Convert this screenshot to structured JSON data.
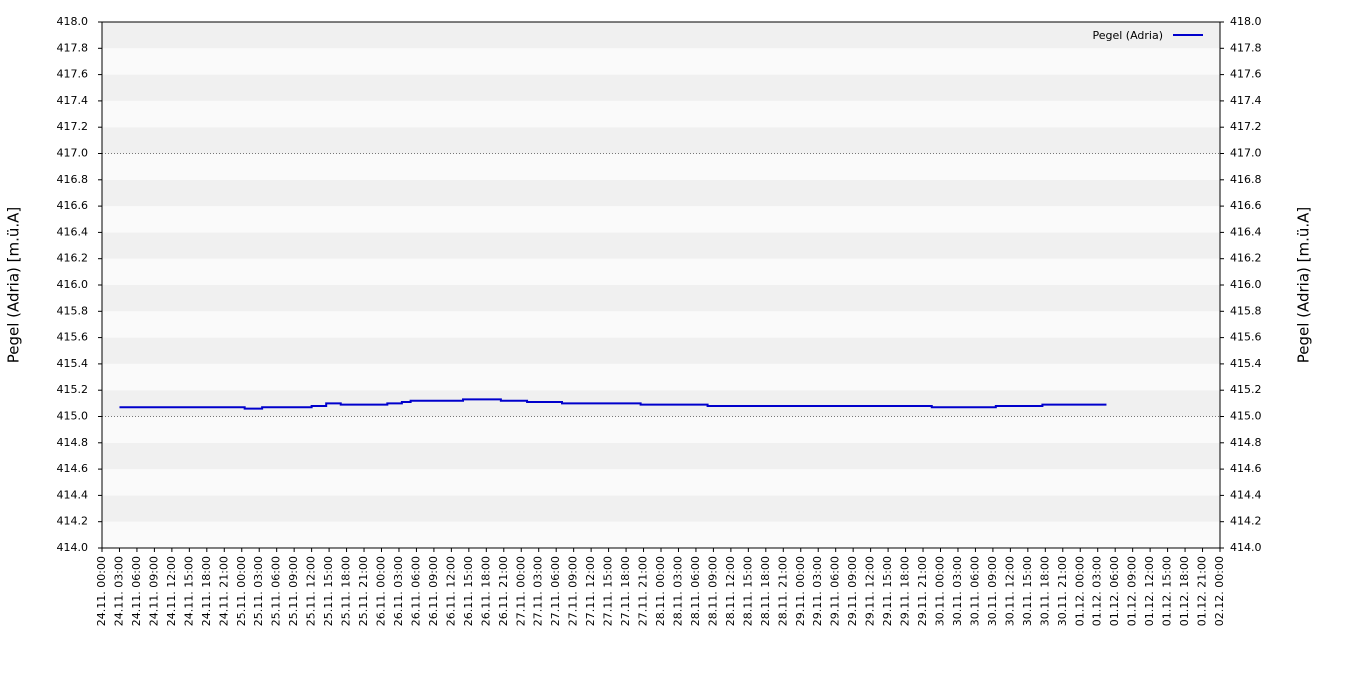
{
  "chart_data": {
    "type": "line",
    "ylabel": "Pegel (Adria) [m.ü.A]",
    "y2label": "Pegel (Adria) [m.ü.A]",
    "legend": "upper right",
    "series": [
      {
        "name": "Pegel (Adria)",
        "color": "#0000cc",
        "x": [
          3,
          24.5,
          24.5,
          27.5,
          27.5,
          36,
          36,
          38.5,
          38.5,
          41,
          41,
          49,
          49,
          51.5,
          51.5,
          53,
          53,
          62,
          62,
          68.5,
          68.5,
          73,
          73,
          79,
          79,
          92.5,
          92.5,
          104,
          104,
          142.5,
          142.5,
          153.5,
          153.5,
          161.5,
          161.5,
          172.5
        ],
        "values": [
          415.07,
          415.07,
          415.06,
          415.06,
          415.07,
          415.07,
          415.08,
          415.08,
          415.1,
          415.1,
          415.09,
          415.09,
          415.1,
          415.1,
          415.11,
          415.11,
          415.12,
          415.12,
          415.13,
          415.13,
          415.12,
          415.12,
          415.11,
          415.11,
          415.1,
          415.1,
          415.09,
          415.09,
          415.08,
          415.08,
          415.07,
          415.07,
          415.08,
          415.08,
          415.09,
          415.09
        ]
      }
    ],
    "reference_lines": [
      415.0,
      417.0
    ],
    "xlim": [
      0,
      192
    ],
    "xticks": [
      {
        "value": 0,
        "label": "24.11. 00:00"
      },
      {
        "value": 3,
        "label": "24.11. 03:00"
      },
      {
        "value": 6,
        "label": "24.11. 06:00"
      },
      {
        "value": 9,
        "label": "24.11. 09:00"
      },
      {
        "value": 12,
        "label": "24.11. 12:00"
      },
      {
        "value": 15,
        "label": "24.11. 15:00"
      },
      {
        "value": 18,
        "label": "24.11. 18:00"
      },
      {
        "value": 21,
        "label": "24.11. 21:00"
      },
      {
        "value": 24,
        "label": "25.11. 00:00"
      },
      {
        "value": 27,
        "label": "25.11. 03:00"
      },
      {
        "value": 30,
        "label": "25.11. 06:00"
      },
      {
        "value": 33,
        "label": "25.11. 09:00"
      },
      {
        "value": 36,
        "label": "25.11. 12:00"
      },
      {
        "value": 39,
        "label": "25.11. 15:00"
      },
      {
        "value": 42,
        "label": "25.11. 18:00"
      },
      {
        "value": 45,
        "label": "25.11. 21:00"
      },
      {
        "value": 48,
        "label": "26.11. 00:00"
      },
      {
        "value": 51,
        "label": "26.11. 03:00"
      },
      {
        "value": 54,
        "label": "26.11. 06:00"
      },
      {
        "value": 57,
        "label": "26.11. 09:00"
      },
      {
        "value": 60,
        "label": "26.11. 12:00"
      },
      {
        "value": 63,
        "label": "26.11. 15:00"
      },
      {
        "value": 66,
        "label": "26.11. 18:00"
      },
      {
        "value": 69,
        "label": "26.11. 21:00"
      },
      {
        "value": 72,
        "label": "27.11. 00:00"
      },
      {
        "value": 75,
        "label": "27.11. 03:00"
      },
      {
        "value": 78,
        "label": "27.11. 06:00"
      },
      {
        "value": 81,
        "label": "27.11. 09:00"
      },
      {
        "value": 84,
        "label": "27.11. 12:00"
      },
      {
        "value": 87,
        "label": "27.11. 15:00"
      },
      {
        "value": 90,
        "label": "27.11. 18:00"
      },
      {
        "value": 93,
        "label": "27.11. 21:00"
      },
      {
        "value": 96,
        "label": "28.11. 00:00"
      },
      {
        "value": 99,
        "label": "28.11. 03:00"
      },
      {
        "value": 102,
        "label": "28.11. 06:00"
      },
      {
        "value": 105,
        "label": "28.11. 09:00"
      },
      {
        "value": 108,
        "label": "28.11. 12:00"
      },
      {
        "value": 111,
        "label": "28.11. 15:00"
      },
      {
        "value": 114,
        "label": "28.11. 18:00"
      },
      {
        "value": 117,
        "label": "28.11. 21:00"
      },
      {
        "value": 120,
        "label": "29.11. 00:00"
      },
      {
        "value": 123,
        "label": "29.11. 03:00"
      },
      {
        "value": 126,
        "label": "29.11. 06:00"
      },
      {
        "value": 129,
        "label": "29.11. 09:00"
      },
      {
        "value": 132,
        "label": "29.11. 12:00"
      },
      {
        "value": 135,
        "label": "29.11. 15:00"
      },
      {
        "value": 138,
        "label": "29.11. 18:00"
      },
      {
        "value": 141,
        "label": "29.11. 21:00"
      },
      {
        "value": 144,
        "label": "30.11. 00:00"
      },
      {
        "value": 147,
        "label": "30.11. 03:00"
      },
      {
        "value": 150,
        "label": "30.11. 06:00"
      },
      {
        "value": 153,
        "label": "30.11. 09:00"
      },
      {
        "value": 156,
        "label": "30.11. 12:00"
      },
      {
        "value": 159,
        "label": "30.11. 15:00"
      },
      {
        "value": 162,
        "label": "30.11. 18:00"
      },
      {
        "value": 165,
        "label": "30.11. 21:00"
      },
      {
        "value": 168,
        "label": "01.12. 00:00"
      },
      {
        "value": 171,
        "label": "01.12. 03:00"
      },
      {
        "value": 174,
        "label": "01.12. 06:00"
      },
      {
        "value": 177,
        "label": "01.12. 09:00"
      },
      {
        "value": 180,
        "label": "01.12. 12:00"
      },
      {
        "value": 183,
        "label": "01.12. 15:00"
      },
      {
        "value": 186,
        "label": "01.12. 18:00"
      },
      {
        "value": 189,
        "label": "01.12. 21:00"
      },
      {
        "value": 192,
        "label": "02.12. 00:00"
      }
    ],
    "ylim": [
      414,
      418
    ],
    "yticks": [
      {
        "value": 414,
        "label": "414.0"
      },
      414.2,
      414.4,
      414.6,
      414.8,
      {
        "value": 415,
        "label": "415.0"
      },
      415.2,
      415.4,
      415.6,
      415.8,
      {
        "value": 416,
        "label": "416.0"
      },
      416.2,
      416.4,
      416.6,
      416.8,
      {
        "value": 417,
        "label": "417.0"
      },
      417.2,
      417.4,
      417.6,
      417.8,
      {
        "value": 418,
        "label": "418.0"
      }
    ],
    "y2lim": [
      414,
      418
    ],
    "y2ticks": [
      {
        "value": 414,
        "label": "414.0"
      },
      414.2,
      414.4,
      414.6,
      414.8,
      {
        "value": 415,
        "label": "415.0"
      },
      415.2,
      415.4,
      415.6,
      415.8,
      {
        "value": 416,
        "label": "416.0"
      },
      416.2,
      416.4,
      416.6,
      416.8,
      {
        "value": 417,
        "label": "417.0"
      },
      417.2,
      417.4,
      417.6,
      417.8,
      {
        "value": 418,
        "label": "418.0"
      }
    ]
  }
}
